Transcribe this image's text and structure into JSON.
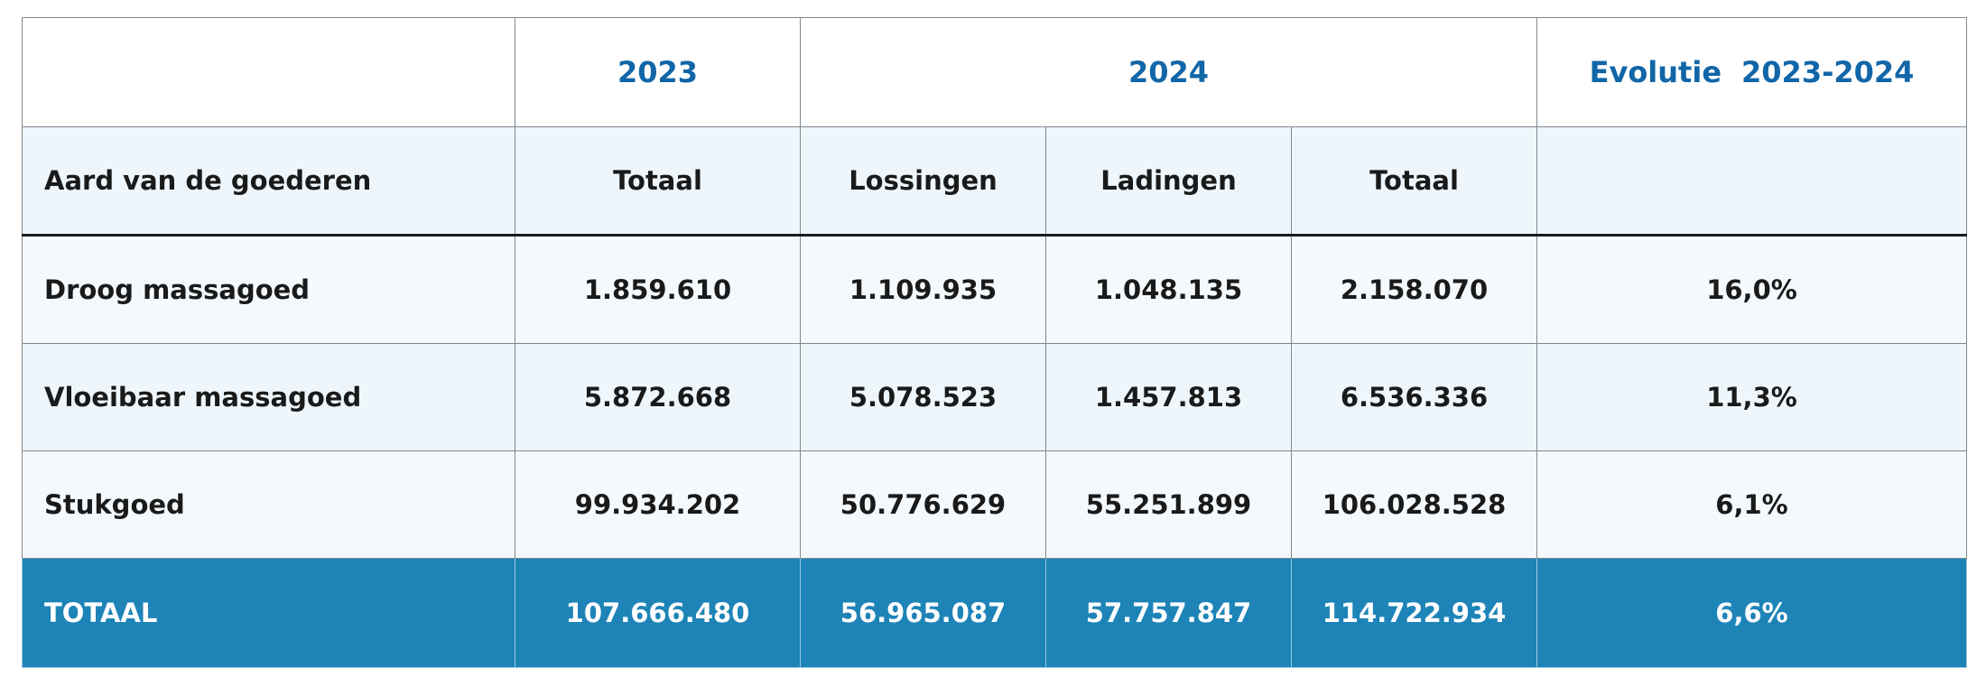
{
  "table": {
    "years": {
      "y2023": "2023",
      "y2024": "2024",
      "evolution_word": "Evolutie",
      "evolution_range": "2023-2024"
    },
    "columns": {
      "category": "Aard van de goederen",
      "total_2023": "Totaal",
      "unloadings": "Lossingen",
      "loadings": "Ladingen",
      "total_2024": "Totaal",
      "evolution": ""
    },
    "rows": [
      {
        "category": "Droog massagoed",
        "total_2023": "1.859.610",
        "unloadings": "1.109.935",
        "loadings": "1.048.135",
        "total_2024": "2.158.070",
        "evolution": "16,0%"
      },
      {
        "category": "Vloeibaar massagoed",
        "total_2023": "5.872.668",
        "unloadings": "5.078.523",
        "loadings": "1.457.813",
        "total_2024": "6.536.336",
        "evolution": "11,3%"
      },
      {
        "category": "Stukgoed",
        "total_2023": "99.934.202",
        "unloadings": "50.776.629",
        "loadings": "55.251.899",
        "total_2024": "106.028.528",
        "evolution": "6,1%"
      }
    ],
    "total": {
      "category": "TOTAAL",
      "total_2023": "107.666.480",
      "unloadings": "56.965.087",
      "loadings": "57.757.847",
      "total_2024": "114.722.934",
      "evolution": "6,6%"
    }
  },
  "colors": {
    "year_header_text": "#1166a8",
    "header_bg": "#eef6fc",
    "total_row_bg": "#1e84b8",
    "total_row_text": "#ffffff"
  }
}
